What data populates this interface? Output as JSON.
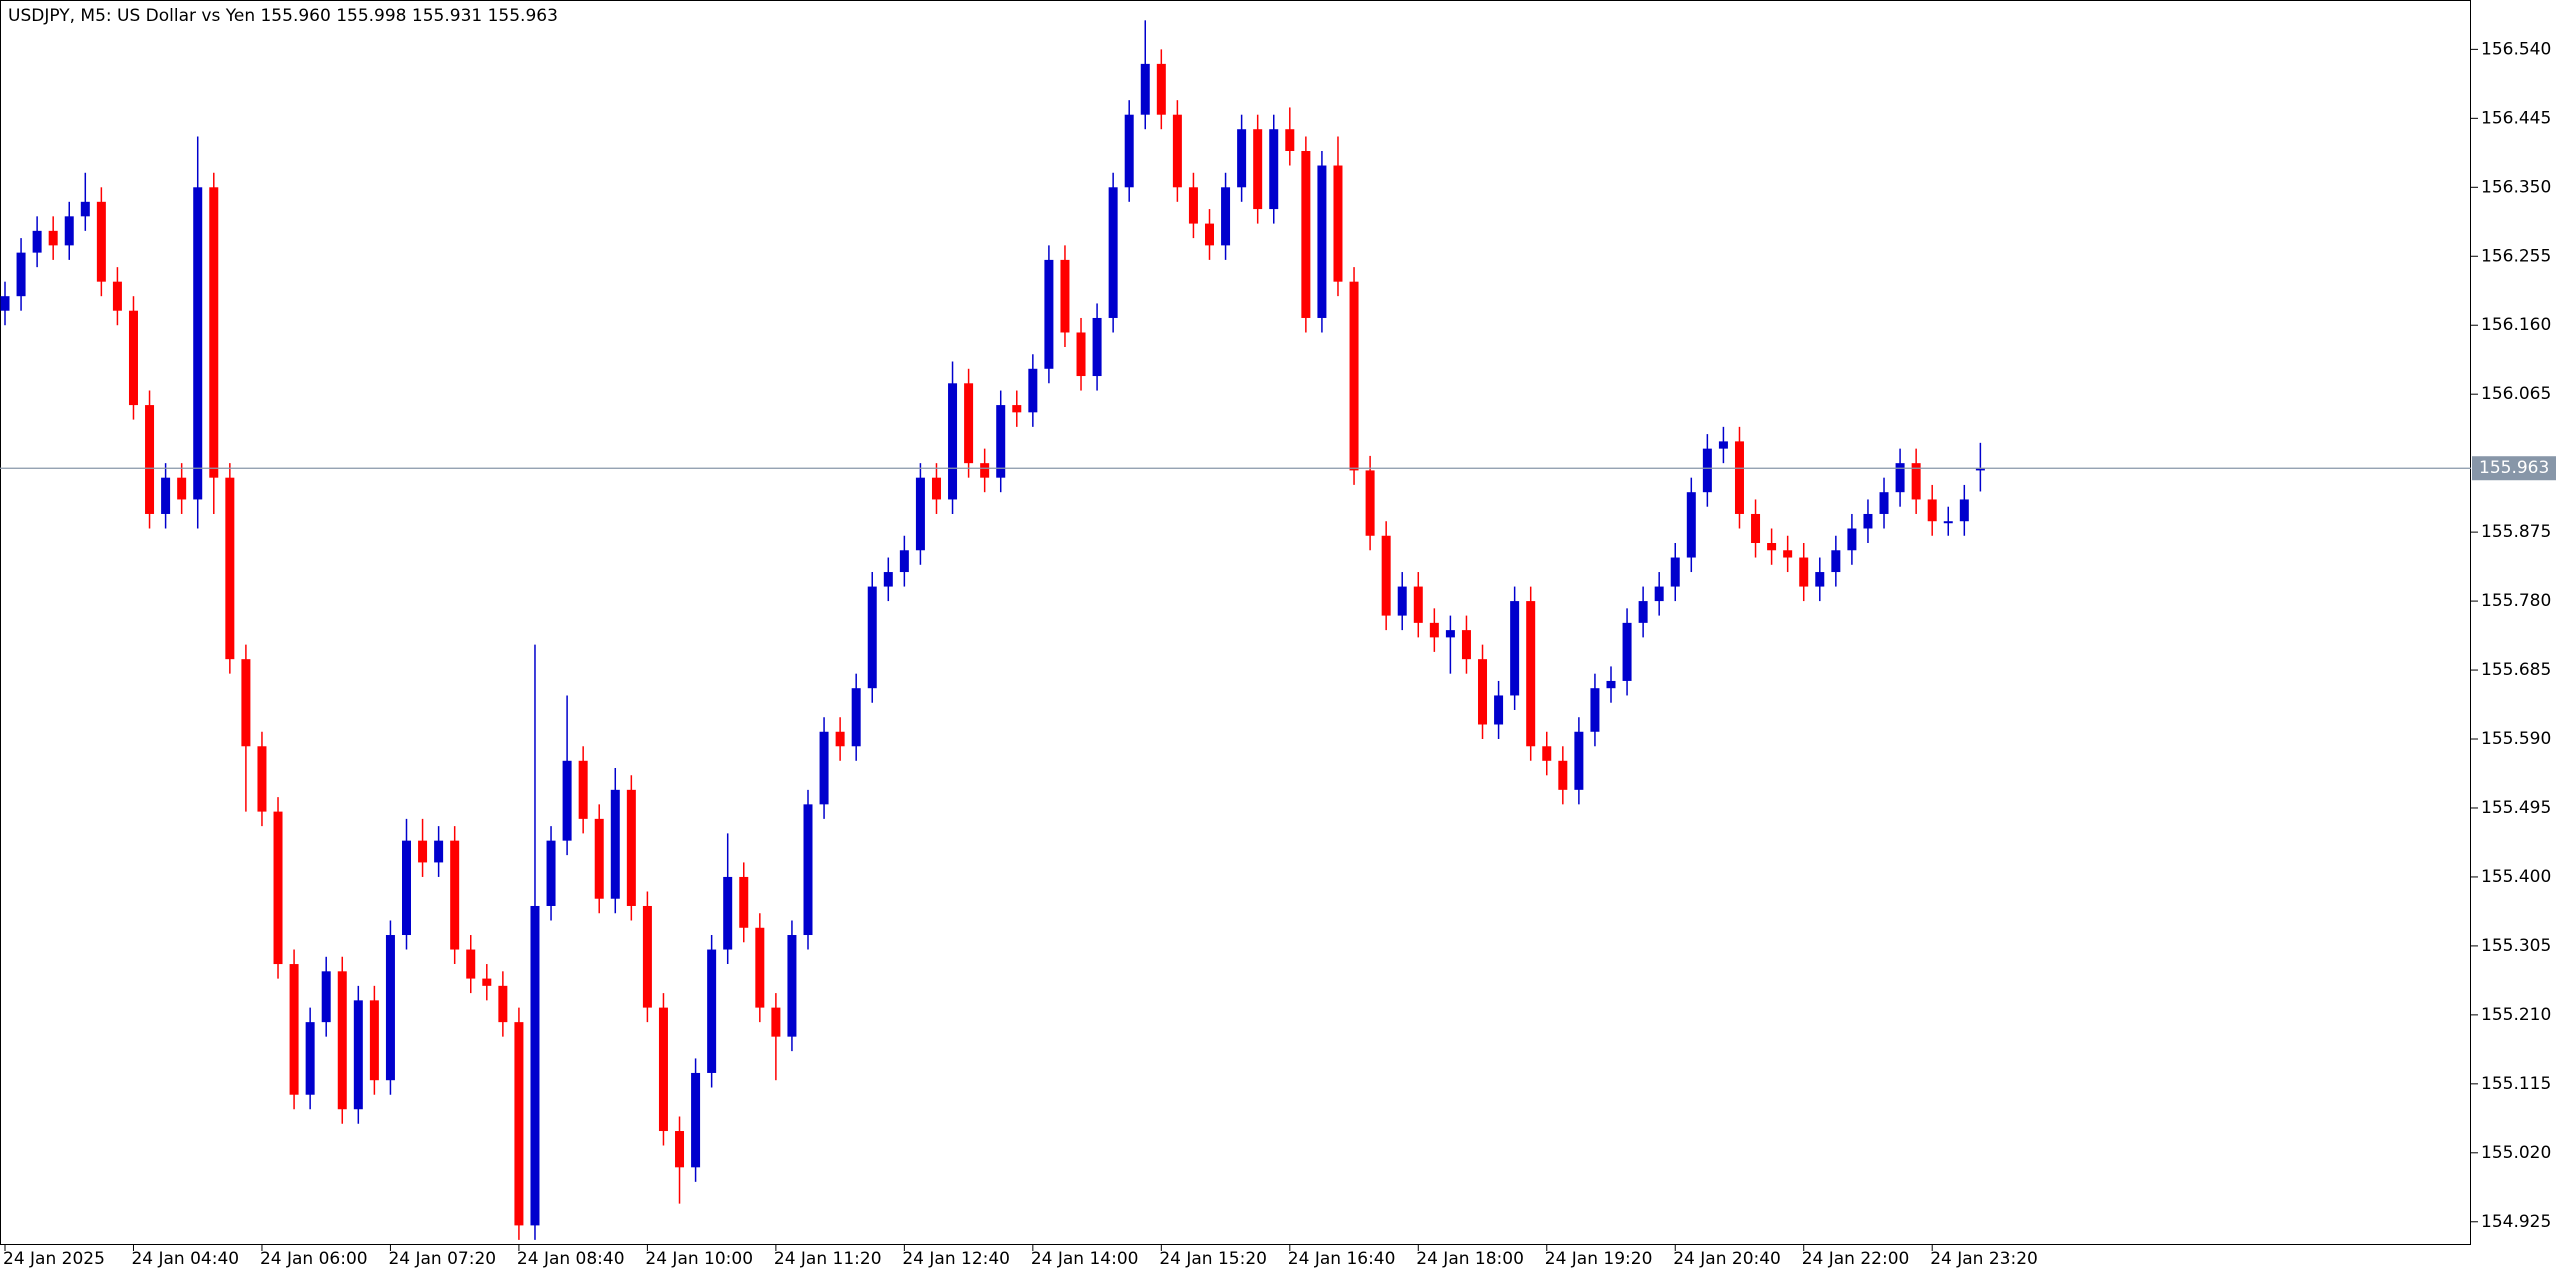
{
  "chart_data": {
    "type": "candlestick",
    "title": "USDJPY, M5:  US Dollar vs Yen  155.960 155.998 155.931 155.963",
    "categories": [
      "24 Jan 2025",
      null,
      null,
      null,
      null,
      null,
      null,
      null,
      "24 Jan 04:40",
      null,
      null,
      null,
      null,
      null,
      null,
      null,
      "24 Jan 06:00",
      null,
      null,
      null,
      null,
      null,
      null,
      null,
      "24 Jan 07:20",
      null,
      null,
      null,
      null,
      null,
      null,
      null,
      "24 Jan 08:40",
      null,
      null,
      null,
      null,
      null,
      null,
      null,
      "24 Jan 10:00",
      null,
      null,
      null,
      null,
      null,
      null,
      null,
      "24 Jan 11:20",
      null,
      null,
      null,
      null,
      null,
      null,
      null,
      "24 Jan 12:40",
      null,
      null,
      null,
      null,
      null,
      null,
      null,
      "24 Jan 14:00",
      null,
      null,
      null,
      null,
      null,
      null,
      null,
      "24 Jan 15:20",
      null,
      null,
      null,
      null,
      null,
      null,
      null,
      "24 Jan 16:40",
      null,
      null,
      null,
      null,
      null,
      null,
      null,
      "24 Jan 18:00",
      null,
      null,
      null,
      null,
      null,
      null,
      null,
      "24 Jan 19:20",
      null,
      null,
      null,
      null,
      null,
      null,
      null,
      "24 Jan 20:40",
      null,
      null,
      null,
      null,
      null,
      null,
      null,
      "24 Jan 22:00",
      null,
      null,
      null,
      null,
      null,
      null,
      null,
      "24 Jan 23:20",
      null,
      null,
      null
    ],
    "open": [
      156.18,
      156.2,
      156.26,
      156.29,
      156.27,
      156.31,
      156.33,
      156.22,
      156.18,
      156.05,
      155.9,
      155.95,
      155.92,
      156.35,
      155.95,
      155.7,
      155.58,
      155.49,
      155.28,
      155.1,
      155.2,
      155.27,
      155.08,
      155.23,
      155.12,
      155.32,
      155.45,
      155.42,
      155.45,
      155.3,
      155.26,
      155.25,
      155.2,
      154.92,
      155.36,
      155.45,
      155.56,
      155.48,
      155.37,
      155.52,
      155.36,
      155.22,
      155.05,
      155.0,
      155.13,
      155.3,
      155.4,
      155.33,
      155.22,
      155.18,
      155.32,
      155.5,
      155.6,
      155.58,
      155.66,
      155.8,
      155.82,
      155.85,
      155.95,
      155.92,
      156.08,
      155.97,
      155.95,
      156.05,
      156.04,
      156.1,
      156.25,
      156.15,
      156.09,
      156.17,
      156.35,
      156.45,
      156.52,
      156.45,
      156.35,
      156.3,
      156.27,
      156.35,
      156.43,
      156.32,
      156.43,
      156.4,
      156.17,
      156.38,
      156.22,
      155.96,
      155.87,
      155.76,
      155.8,
      155.75,
      155.73,
      155.74,
      155.7,
      155.61,
      155.65,
      155.78,
      155.58,
      155.56,
      155.52,
      155.6,
      155.66,
      155.67,
      155.75,
      155.78,
      155.8,
      155.84,
      155.93,
      155.99,
      156.0,
      155.9,
      155.86,
      155.85,
      155.84,
      155.8,
      155.82,
      155.85,
      155.88,
      155.9,
      155.93,
      155.97,
      155.92,
      155.89,
      155.89,
      155.96
    ],
    "high": [
      156.22,
      156.28,
      156.31,
      156.31,
      156.33,
      156.37,
      156.35,
      156.24,
      156.2,
      156.07,
      155.97,
      155.97,
      156.42,
      156.37,
      155.97,
      155.72,
      155.6,
      155.51,
      155.3,
      155.22,
      155.29,
      155.29,
      155.25,
      155.25,
      155.34,
      155.48,
      155.48,
      155.47,
      155.47,
      155.32,
      155.28,
      155.27,
      155.22,
      155.72,
      155.47,
      155.65,
      155.58,
      155.5,
      155.55,
      155.54,
      155.38,
      155.24,
      155.07,
      155.15,
      155.32,
      155.46,
      155.42,
      155.35,
      155.24,
      155.34,
      155.52,
      155.62,
      155.62,
      155.68,
      155.82,
      155.84,
      155.87,
      155.97,
      155.97,
      156.11,
      156.1,
      155.99,
      156.07,
      156.07,
      156.12,
      156.27,
      156.27,
      156.17,
      156.19,
      156.37,
      156.47,
      156.58,
      156.54,
      156.47,
      156.37,
      156.32,
      156.37,
      156.45,
      156.45,
      156.45,
      156.46,
      156.42,
      156.4,
      156.42,
      156.24,
      155.98,
      155.89,
      155.82,
      155.82,
      155.77,
      155.76,
      155.76,
      155.72,
      155.67,
      155.8,
      155.8,
      155.6,
      155.58,
      155.62,
      155.68,
      155.69,
      155.77,
      155.8,
      155.82,
      155.86,
      155.95,
      156.01,
      156.02,
      156.02,
      155.92,
      155.88,
      155.87,
      155.86,
      155.84,
      155.87,
      155.9,
      155.92,
      155.95,
      155.99,
      155.99,
      155.94,
      155.91,
      155.94,
      155.998
    ],
    "low": [
      156.16,
      156.18,
      156.24,
      156.25,
      156.25,
      156.29,
      156.2,
      156.16,
      156.03,
      155.88,
      155.88,
      155.9,
      155.88,
      155.9,
      155.68,
      155.49,
      155.47,
      155.26,
      155.08,
      155.08,
      155.18,
      155.06,
      155.06,
      155.1,
      155.1,
      155.3,
      155.4,
      155.4,
      155.28,
      155.24,
      155.23,
      155.18,
      154.9,
      154.9,
      155.34,
      155.43,
      155.46,
      155.35,
      155.35,
      155.34,
      155.2,
      155.03,
      154.95,
      154.98,
      155.11,
      155.28,
      155.31,
      155.2,
      155.12,
      155.16,
      155.3,
      155.48,
      155.56,
      155.56,
      155.64,
      155.78,
      155.8,
      155.83,
      155.9,
      155.9,
      155.95,
      155.93,
      155.93,
      156.02,
      156.02,
      156.08,
      156.13,
      156.07,
      156.07,
      156.15,
      156.33,
      156.43,
      156.43,
      156.33,
      156.28,
      156.25,
      156.25,
      156.33,
      156.3,
      156.3,
      156.38,
      156.15,
      156.15,
      156.2,
      155.94,
      155.85,
      155.74,
      155.74,
      155.73,
      155.71,
      155.68,
      155.68,
      155.59,
      155.59,
      155.63,
      155.56,
      155.54,
      155.5,
      155.5,
      155.58,
      155.64,
      155.65,
      155.73,
      155.76,
      155.78,
      155.82,
      155.91,
      155.97,
      155.88,
      155.84,
      155.83,
      155.82,
      155.78,
      155.78,
      155.8,
      155.83,
      155.86,
      155.88,
      155.91,
      155.9,
      155.87,
      155.87,
      155.87,
      155.931
    ],
    "close": [
      156.2,
      156.26,
      156.29,
      156.27,
      156.31,
      156.33,
      156.22,
      156.18,
      156.05,
      155.9,
      155.95,
      155.92,
      156.35,
      155.95,
      155.7,
      155.58,
      155.49,
      155.28,
      155.1,
      155.2,
      155.27,
      155.08,
      155.23,
      155.12,
      155.32,
      155.45,
      155.42,
      155.45,
      155.3,
      155.26,
      155.25,
      155.2,
      154.92,
      155.36,
      155.45,
      155.56,
      155.48,
      155.37,
      155.52,
      155.36,
      155.22,
      155.05,
      155.0,
      155.13,
      155.3,
      155.4,
      155.33,
      155.22,
      155.18,
      155.32,
      155.5,
      155.6,
      155.58,
      155.66,
      155.8,
      155.82,
      155.85,
      155.95,
      155.92,
      156.08,
      155.97,
      155.95,
      156.05,
      156.04,
      156.1,
      156.25,
      156.15,
      156.09,
      156.17,
      156.35,
      156.45,
      156.52,
      156.45,
      156.35,
      156.3,
      156.27,
      156.35,
      156.43,
      156.32,
      156.43,
      156.4,
      156.17,
      156.38,
      156.22,
      155.96,
      155.87,
      155.76,
      155.8,
      155.75,
      155.73,
      155.74,
      155.7,
      155.61,
      155.65,
      155.78,
      155.58,
      155.56,
      155.52,
      155.6,
      155.66,
      155.67,
      155.75,
      155.78,
      155.8,
      155.84,
      155.93,
      155.99,
      156.0,
      155.9,
      155.86,
      155.85,
      155.84,
      155.8,
      155.82,
      155.85,
      155.88,
      155.9,
      155.93,
      155.97,
      155.92,
      155.89,
      155.89,
      155.92,
      155.963
    ],
    "up_color": "#0000cd",
    "down_color": "#ff0000",
    "ylim": [
      154.893,
      156.608
    ],
    "yticks": [
      {
        "value": 156.54,
        "label": "156.540"
      },
      156.445,
      {
        "value": 156.35,
        "label": "156.350"
      },
      156.255,
      {
        "value": 156.16,
        "label": "156.160"
      },
      156.065,
      155.875,
      {
        "value": 155.78,
        "label": "155.780"
      },
      155.685,
      {
        "value": 155.59,
        "label": "155.590"
      },
      155.495,
      {
        "value": 155.4,
        "label": "155.400"
      },
      155.305,
      {
        "value": 155.21,
        "label": "155.210"
      },
      155.115,
      {
        "value": 155.02,
        "label": "155.020"
      },
      154.925
    ],
    "current_price": 155.963,
    "current_price_color": "#8796a8"
  }
}
